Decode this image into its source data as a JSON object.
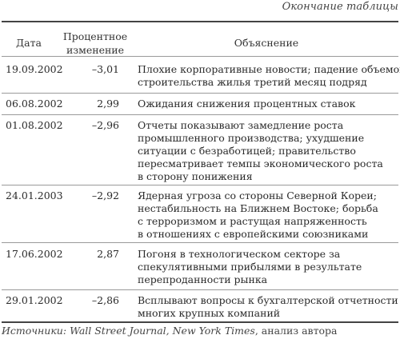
{
  "continuation_label": "Окончание таблицы",
  "table": {
    "headers": {
      "date": "Дата",
      "change_line1": "Процентное",
      "change_line2": "изменение",
      "explanation": "Объяснение"
    },
    "rows": [
      {
        "date": "19.09.2002",
        "change": "–3,01",
        "explanation": [
          "Плохие корпоративные новости; падение объемов",
          "строительства жилья третий месяц подряд"
        ]
      },
      {
        "date": "06.08.2002",
        "change": "2,99",
        "explanation": [
          "Ожидания снижения процентных ставок"
        ]
      },
      {
        "date": "01.08.2002",
        "change": "–2,96",
        "explanation": [
          "Отчеты показывают замедление роста",
          "промышленного производства; ухудшение",
          "ситуации с безработицей; правительство",
          "пересматривает темпы экономического роста",
          "в сторону понижения"
        ]
      },
      {
        "date": "24.01.2003",
        "change": "–2,92",
        "explanation": [
          "Ядерная угроза со стороны Северной Кореи;",
          "нестабильность на Ближнем Востоке; борьба",
          "с терроризмом и растущая напряженность",
          "в отношениях с европейскими союзниками"
        ]
      },
      {
        "date": "17.06.2002",
        "change": "2,87",
        "explanation": [
          "Погоня в технологическом секторе за",
          "спекулятивными прибылями в результате",
          "перепроданности рынка"
        ]
      },
      {
        "date": "29.01.2002",
        "change": "–2,86",
        "explanation": [
          "Всплывают вопросы к бухгалтерской отчетности",
          "многих крупных компаний"
        ]
      }
    ]
  },
  "sources": {
    "label": "Источники:",
    "publications": "Wall Street Journal, New York Times",
    "rest": ", анализ автора"
  }
}
